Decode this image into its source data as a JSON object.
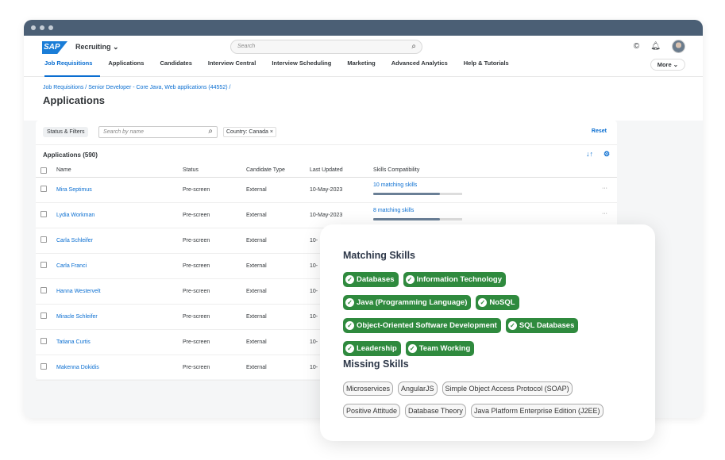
{
  "header": {
    "logo": "SAP",
    "app": "Recruiting",
    "search_placeholder": "Search",
    "nav": [
      "Job Requisitions",
      "Applications",
      "Candidates",
      "Interview Central",
      "Interview Scheduling",
      "Marketing",
      "Advanced Analytics",
      "Help & Tutorials"
    ],
    "more": "More"
  },
  "page": {
    "breadcrumb": "Job Requisitions / Senior Developer - Core Java, Web applications (44552) /",
    "title": "Applications"
  },
  "filters": {
    "status_filters": "Status & Filters",
    "search_placeholder": "Search by name",
    "chip": "Country: Canada ×",
    "reset": "Reset"
  },
  "table": {
    "title": "Applications (590)",
    "columns": [
      "Name",
      "Status",
      "Candidate Type",
      "Last Updated",
      "Skills Compatibility"
    ],
    "rows": [
      {
        "name": "Mira Septimus",
        "status": "Pre-screen",
        "type": "External",
        "updated": "10-May-2023",
        "skills": "10 matching skills",
        "fill": 0.75
      },
      {
        "name": "Lydia Workman",
        "status": "Pre-screen",
        "type": "External",
        "updated": "10-May-2023",
        "skills": "8 matching skills",
        "fill": 0.75
      },
      {
        "name": "Carla Schleifer",
        "status": "Pre-screen",
        "type": "External",
        "updated": "10-"
      },
      {
        "name": "Carla Franci",
        "status": "Pre-screen",
        "type": "External",
        "updated": "10-"
      },
      {
        "name": "Hanna Westervelt",
        "status": "Pre-screen",
        "type": "External",
        "updated": "10-"
      },
      {
        "name": "Miracle Schleifer",
        "status": "Pre-screen",
        "type": "External",
        "updated": "10-"
      },
      {
        "name": "Tatiana Curtis",
        "status": "Pre-screen",
        "type": "External",
        "updated": "10-"
      },
      {
        "name": "Makenna Dokidis",
        "status": "Pre-screen",
        "type": "External",
        "updated": "10-"
      }
    ]
  },
  "popup": {
    "matching_title": "Matching Skills",
    "matching": [
      "Databases",
      "Information Technology",
      "Java (Programming Language)",
      "NoSQL",
      "Object-Oriented Software Development",
      "SQL Databases",
      "Leadership",
      "Team Working"
    ],
    "missing_title": "Missing Skills",
    "missing": [
      "Microservices",
      "AngularJS",
      "Simple Object Access Protocol (SOAP)",
      "Positive Attitude",
      "Database Theory",
      "Java Platform Enterprise Edition (J2EE)"
    ],
    "matching_color": "#2f8a3e"
  }
}
